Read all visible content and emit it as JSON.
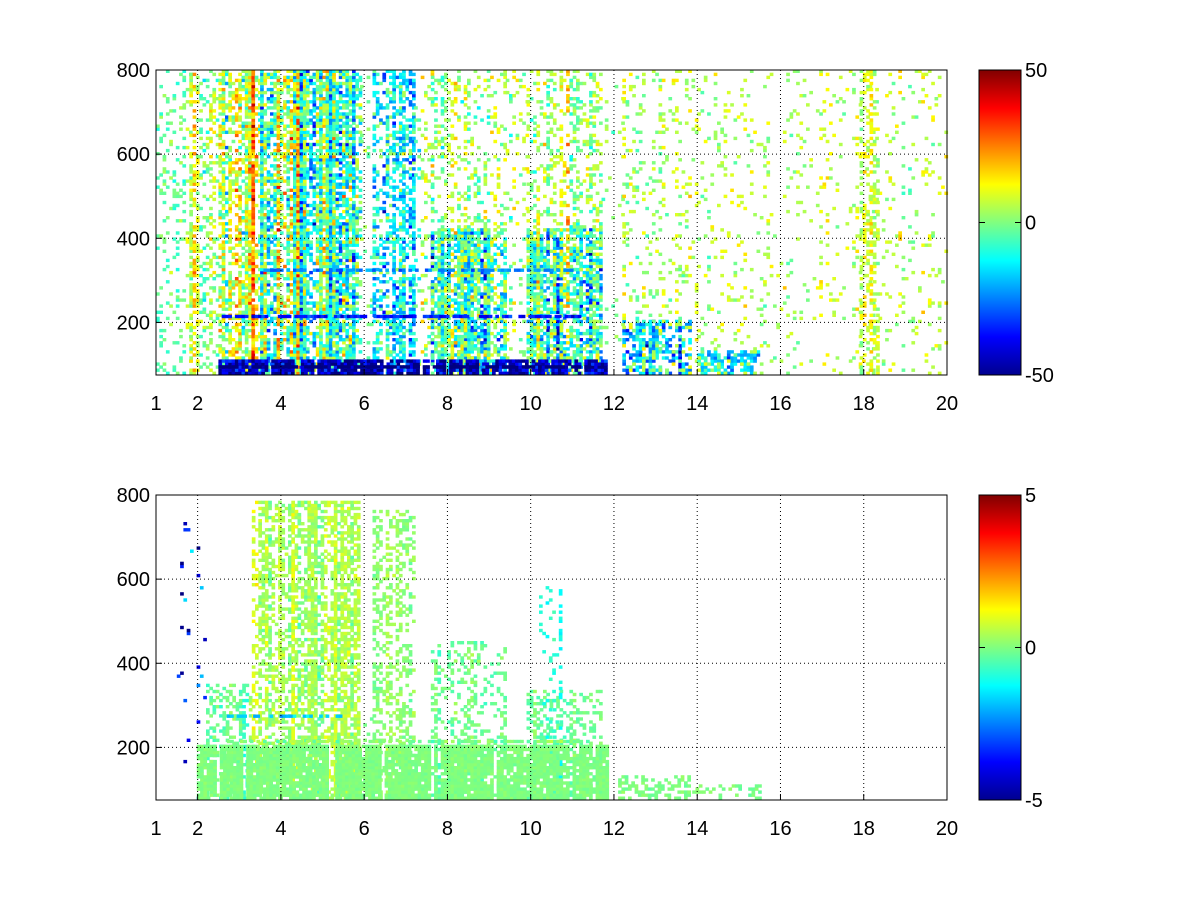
{
  "chart_data": [
    {
      "type": "heatmap",
      "title": "",
      "xlabel": "",
      "ylabel": "",
      "xlim": [
        1,
        20
      ],
      "ylim": [
        75,
        800
      ],
      "x_ticks": [
        "1",
        "2",
        "4",
        "6",
        "8",
        "10",
        "12",
        "14",
        "16",
        "18",
        "20"
      ],
      "x_tick_values": [
        1,
        2,
        4,
        6,
        8,
        10,
        12,
        14,
        16,
        18,
        20
      ],
      "y_ticks": [
        "200",
        "400",
        "600",
        "800"
      ],
      "y_tick_values": [
        200,
        400,
        600,
        800
      ],
      "grid": true,
      "colormap": "jet",
      "colorbar": {
        "min": -50,
        "max": 50,
        "tick_labels": [
          "50",
          "0",
          "-50"
        ],
        "tick_values": [
          50,
          0,
          -50
        ]
      },
      "value_range": [
        -50,
        50
      ],
      "colors": {
        "min": "#00008f",
        "mid": "#80ff80",
        "max": "#800000"
      },
      "x_bands": [
        {
          "x": [
            1.0,
            1.8
          ],
          "y_max": 800,
          "density": 0.14,
          "mean": 0,
          "spread": 0.18
        },
        {
          "x": [
            1.8,
            2.5
          ],
          "y_max": 800,
          "density": 0.35,
          "mean": 0.05,
          "spread": 0.28
        },
        {
          "x": [
            2.5,
            3.5
          ],
          "y_max": 800,
          "density": 0.6,
          "mean": 0.08,
          "spread": 0.42
        },
        {
          "x": [
            3.5,
            4.6
          ],
          "y_max": 800,
          "density": 0.82,
          "mean": 0.03,
          "spread": 0.55
        },
        {
          "x": [
            4.6,
            5.9
          ],
          "y_max": 800,
          "density": 0.85,
          "mean": -0.08,
          "spread": 0.55
        },
        {
          "x": [
            5.9,
            6.2
          ],
          "y_max": 800,
          "density": 0.05,
          "mean": 0,
          "spread": 0.2
        },
        {
          "x": [
            6.2,
            7.2
          ],
          "y_max": 800,
          "density": 0.55,
          "mean": -0.12,
          "spread": 0.45
        },
        {
          "x": [
            7.2,
            7.6
          ],
          "y_max": 800,
          "density": 0.12,
          "mean": 0.05,
          "spread": 0.3
        },
        {
          "x": [
            7.6,
            9.4
          ],
          "y_max": 420,
          "density": 0.68,
          "mean": -0.12,
          "spread": 0.5
        },
        {
          "x": [
            7.6,
            9.4
          ],
          "y_max": 800,
          "density": 0.22,
          "mean": 0.05,
          "spread": 0.25
        },
        {
          "x": [
            9.4,
            9.9
          ],
          "y_max": 800,
          "density": 0.1,
          "mean": 0.05,
          "spread": 0.25
        },
        {
          "x": [
            9.9,
            11.7
          ],
          "y_max": 420,
          "density": 0.58,
          "mean": -0.12,
          "spread": 0.5
        },
        {
          "x": [
            9.9,
            11.7
          ],
          "y_max": 800,
          "density": 0.25,
          "mean": 0.05,
          "spread": 0.25
        },
        {
          "x": [
            11.7,
            12.2
          ],
          "y_max": 800,
          "density": 0.05,
          "mean": 0,
          "spread": 0.2
        },
        {
          "x": [
            12.2,
            13.8
          ],
          "y_max": 200,
          "density": 0.6,
          "mean": -0.2,
          "spread": 0.35
        },
        {
          "x": [
            12.2,
            14.0
          ],
          "y_max": 800,
          "density": 0.14,
          "mean": 0.05,
          "spread": 0.2
        },
        {
          "x": [
            14.0,
            15.5
          ],
          "y_max": 130,
          "density": 0.55,
          "mean": -0.15,
          "spread": 0.25
        },
        {
          "x": [
            14.0,
            20.0
          ],
          "y_max": 800,
          "density": 0.09,
          "mean": 0.05,
          "spread": 0.2
        },
        {
          "x": [
            17.9,
            18.3
          ],
          "y_max": 800,
          "density": 0.4,
          "mean": 0.05,
          "spread": 0.22
        }
      ],
      "bottom_stripe": {
        "x": [
          2.5,
          11.8
        ],
        "y_max": 110,
        "mean": -0.55,
        "spread": 0.45
      },
      "horizontal_streaks": [
        {
          "y": 90,
          "x": [
            2.5,
            11.5
          ],
          "mean": -0.6
        },
        {
          "y": 210,
          "x": [
            2.5,
            11.5
          ],
          "mean": -0.35
        },
        {
          "y": 320,
          "x": [
            3.5,
            11.0
          ],
          "mean": -0.25
        }
      ]
    },
    {
      "type": "heatmap",
      "title": "",
      "xlabel": "",
      "ylabel": "",
      "xlim": [
        1,
        20
      ],
      "ylim": [
        75,
        800
      ],
      "x_ticks": [
        "1",
        "2",
        "4",
        "6",
        "8",
        "10",
        "12",
        "14",
        "16",
        "18",
        "20"
      ],
      "x_tick_values": [
        1,
        2,
        4,
        6,
        8,
        10,
        12,
        14,
        16,
        18,
        20
      ],
      "y_ticks": [
        "200",
        "400",
        "600",
        "800"
      ],
      "y_tick_values": [
        200,
        400,
        600,
        800
      ],
      "grid": true,
      "colormap": "jet",
      "colorbar": {
        "min": -5,
        "max": 5,
        "tick_labels": [
          "5",
          "0",
          "-5"
        ],
        "tick_values": [
          5,
          0,
          -5
        ]
      },
      "value_range": [
        -5,
        5
      ],
      "colors": {
        "min": "#00008f",
        "mid": "#80ff80",
        "max": "#800000"
      },
      "x_bands": [
        {
          "x": [
            1.5,
            2.2
          ],
          "y_max": 760,
          "density": 0.04,
          "mean": -0.3,
          "spread": 0.4
        },
        {
          "x": [
            2.2,
            3.3
          ],
          "y_max": 350,
          "density": 0.35,
          "mean": -0.02,
          "spread": 0.12
        },
        {
          "x": [
            3.3,
            4.4
          ],
          "y_max": 780,
          "density": 0.55,
          "mean": 0.04,
          "spread": 0.12
        },
        {
          "x": [
            4.4,
            5.9
          ],
          "y_max": 780,
          "density": 0.6,
          "mean": 0.03,
          "spread": 0.12
        },
        {
          "x": [
            5.9,
            6.2
          ],
          "y_max": 300,
          "density": 0.1,
          "mean": 0,
          "spread": 0.08
        },
        {
          "x": [
            6.2,
            7.2
          ],
          "y_max": 760,
          "density": 0.35,
          "mean": 0.02,
          "spread": 0.08
        },
        {
          "x": [
            7.6,
            9.4
          ],
          "y_max": 450,
          "density": 0.4,
          "mean": -0.02,
          "spread": 0.09
        },
        {
          "x": [
            9.9,
            11.7
          ],
          "y_max": 330,
          "density": 0.35,
          "mean": -0.02,
          "spread": 0.08
        },
        {
          "x": [
            10.2,
            10.7
          ],
          "y_max": 580,
          "density": 0.15,
          "mean": -0.1,
          "spread": 0.08
        },
        {
          "x": [
            12.1,
            13.8
          ],
          "y_max": 130,
          "density": 0.4,
          "mean": 0,
          "spread": 0.05
        },
        {
          "x": [
            13.8,
            15.5
          ],
          "y_max": 110,
          "density": 0.3,
          "mean": 0,
          "spread": 0.05
        }
      ],
      "bottom_stripe": {
        "x": [
          1.9,
          11.8
        ],
        "y_max": 200,
        "mean": 0.0,
        "spread": 0.05
      },
      "horizontal_streaks": [
        {
          "y": 270,
          "x": [
            2.7,
            5.5
          ],
          "mean": -0.18
        },
        {
          "y": 210,
          "x": [
            2.7,
            11.5
          ],
          "mean": 0.0
        }
      ]
    }
  ]
}
